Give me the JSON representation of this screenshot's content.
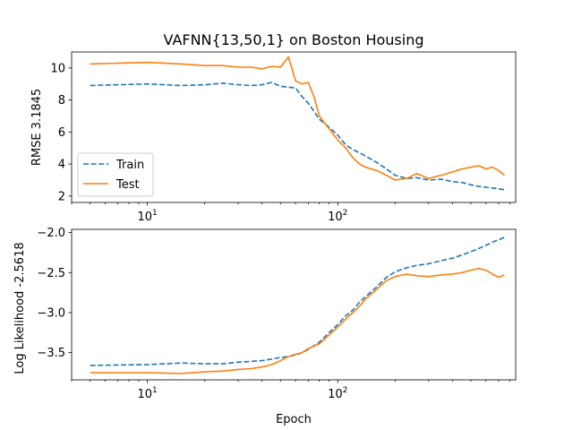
{
  "chart_data": [
    {
      "type": "line",
      "title": "VAFNN{13,50,1} on Boston Housing",
      "xlabel": "",
      "ylabel": "RMSE 3.1845",
      "xscale": "log",
      "xlim": [
        4,
        860
      ],
      "ylim": [
        1.6,
        11.0
      ],
      "yticks": [
        2,
        4,
        6,
        8,
        10
      ],
      "xticks": [
        {
          "value": 10,
          "base": "10",
          "exp": "1"
        },
        {
          "value": 100,
          "base": "10",
          "exp": "2"
        }
      ],
      "legend": "lower-left",
      "series": [
        {
          "name": "Train",
          "color": "#1f77b4",
          "dash": "dashed",
          "x": [
            5,
            10,
            15,
            20,
            25,
            30,
            35,
            40,
            45,
            50,
            55,
            60,
            65,
            70,
            75,
            80,
            90,
            100,
            110,
            120,
            130,
            140,
            160,
            180,
            200,
            230,
            260,
            300,
            350,
            400,
            450,
            500,
            550,
            600,
            650,
            700,
            750
          ],
          "y": [
            8.9,
            9.0,
            8.9,
            8.95,
            9.05,
            8.95,
            8.9,
            8.95,
            9.1,
            8.85,
            8.8,
            8.75,
            8.2,
            7.8,
            7.3,
            6.8,
            6.3,
            5.8,
            5.2,
            4.9,
            4.7,
            4.5,
            4.1,
            3.7,
            3.3,
            3.1,
            3.15,
            3.0,
            3.05,
            2.9,
            2.85,
            2.7,
            2.6,
            2.55,
            2.5,
            2.45,
            2.4
          ]
        },
        {
          "name": "Test",
          "color": "#ff7f0e",
          "dash": "solid",
          "x": [
            5,
            10,
            15,
            20,
            25,
            30,
            35,
            40,
            45,
            50,
            55,
            60,
            65,
            70,
            75,
            80,
            90,
            100,
            110,
            120,
            130,
            140,
            160,
            180,
            200,
            230,
            260,
            300,
            350,
            400,
            450,
            500,
            550,
            600,
            650,
            700,
            750
          ],
          "y": [
            10.25,
            10.35,
            10.25,
            10.15,
            10.15,
            10.05,
            10.05,
            9.95,
            10.1,
            10.05,
            10.7,
            9.2,
            9.0,
            9.1,
            8.2,
            7.0,
            6.2,
            5.5,
            5.0,
            4.4,
            4.0,
            3.8,
            3.6,
            3.3,
            3.0,
            3.1,
            3.4,
            3.1,
            3.3,
            3.5,
            3.7,
            3.8,
            3.9,
            3.7,
            3.8,
            3.6,
            3.3
          ]
        }
      ]
    },
    {
      "type": "line",
      "title": "",
      "xlabel": "Epoch",
      "ylabel": "Log Likelihood -2.5618",
      "xscale": "log",
      "xlim": [
        4,
        860
      ],
      "ylim": [
        -3.84,
        -1.96
      ],
      "yticks": [
        -3.5,
        -3.0,
        -2.5,
        -2.0
      ],
      "ytick_labels": [
        "−3.5",
        "−3.0",
        "−2.5",
        "−2.0"
      ],
      "xticks": [
        {
          "value": 10,
          "base": "10",
          "exp": "1"
        },
        {
          "value": 100,
          "base": "10",
          "exp": "2"
        }
      ],
      "series": [
        {
          "name": "Train",
          "color": "#1f77b4",
          "dash": "dashed",
          "x": [
            5,
            10,
            15,
            20,
            25,
            30,
            35,
            40,
            45,
            50,
            55,
            60,
            65,
            70,
            80,
            90,
            100,
            110,
            120,
            130,
            140,
            160,
            180,
            200,
            230,
            260,
            300,
            350,
            400,
            450,
            500,
            550,
            600,
            650,
            700,
            750
          ],
          "y": [
            -3.66,
            -3.65,
            -3.63,
            -3.64,
            -3.64,
            -3.62,
            -3.61,
            -3.6,
            -3.58,
            -3.56,
            -3.55,
            -3.53,
            -3.5,
            -3.46,
            -3.37,
            -3.25,
            -3.15,
            -3.04,
            -2.97,
            -2.87,
            -2.8,
            -2.68,
            -2.56,
            -2.49,
            -2.44,
            -2.41,
            -2.39,
            -2.35,
            -2.32,
            -2.28,
            -2.24,
            -2.2,
            -2.16,
            -2.12,
            -2.09,
            -2.06
          ]
        },
        {
          "name": "Test",
          "color": "#ff7f0e",
          "dash": "solid",
          "x": [
            5,
            10,
            15,
            20,
            25,
            30,
            35,
            40,
            45,
            50,
            55,
            60,
            65,
            70,
            80,
            90,
            100,
            110,
            120,
            130,
            140,
            160,
            180,
            200,
            230,
            260,
            300,
            350,
            400,
            450,
            500,
            550,
            600,
            650,
            700,
            750
          ],
          "y": [
            -3.75,
            -3.75,
            -3.76,
            -3.74,
            -3.73,
            -3.71,
            -3.7,
            -3.68,
            -3.65,
            -3.6,
            -3.55,
            -3.52,
            -3.5,
            -3.45,
            -3.39,
            -3.28,
            -3.18,
            -3.08,
            -3.0,
            -2.92,
            -2.83,
            -2.71,
            -2.6,
            -2.55,
            -2.52,
            -2.54,
            -2.55,
            -2.53,
            -2.52,
            -2.5,
            -2.47,
            -2.45,
            -2.47,
            -2.52,
            -2.56,
            -2.53
          ]
        }
      ]
    }
  ]
}
